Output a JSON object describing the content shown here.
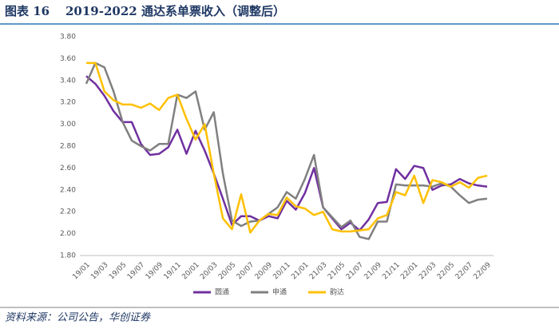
{
  "chart_data": {
    "type": "line",
    "label": "图表 16",
    "title": "2019-2022 通达系单票收入（调整后）",
    "source": "资料来源：公司公告，华创证券",
    "categories": [
      "19/01",
      null,
      "19/03",
      null,
      "19/05",
      null,
      "19/07",
      null,
      "19/09",
      null,
      "19/11",
      null,
      "20/01",
      null,
      "20/03",
      null,
      "20/05",
      null,
      "20/07",
      null,
      "20/09",
      null,
      "20/11",
      null,
      "21/01",
      null,
      "21/03",
      null,
      "21/05",
      null,
      "21/07",
      null,
      "21/09",
      null,
      "21/11",
      null,
      "22/01",
      null,
      "22/03",
      null,
      "22/05",
      null,
      "22/07",
      null,
      "22/09"
    ],
    "series": [
      {
        "name": "圆通",
        "color": "#7030a0",
        "values": [
          3.44,
          3.37,
          3.26,
          3.12,
          3.02,
          3.02,
          2.82,
          2.72,
          2.73,
          2.79,
          2.95,
          2.73,
          2.94,
          2.76,
          2.55,
          2.32,
          2.08,
          2.16,
          2.16,
          2.12,
          2.16,
          2.14,
          2.3,
          2.22,
          2.37,
          2.6,
          2.24,
          2.14,
          2.04,
          2.1,
          2.03,
          2.13,
          2.28,
          2.29,
          2.59,
          2.5,
          2.62,
          2.6,
          2.4,
          2.44,
          2.45,
          2.5,
          2.46,
          2.44,
          2.43
        ]
      },
      {
        "name": "申通",
        "color": "#808080",
        "values": [
          3.37,
          3.56,
          3.52,
          3.3,
          3.02,
          2.85,
          2.8,
          2.76,
          2.82,
          2.82,
          3.27,
          3.24,
          3.3,
          2.95,
          3.11,
          2.55,
          2.12,
          2.07,
          2.11,
          2.12,
          2.18,
          2.24,
          2.38,
          2.32,
          2.5,
          2.72,
          2.24,
          2.15,
          2.06,
          2.12,
          1.97,
          1.95,
          2.11,
          2.11,
          2.45,
          2.44,
          2.44,
          2.44,
          2.43,
          2.46,
          2.43,
          2.35,
          2.28,
          2.31,
          2.32
        ]
      },
      {
        "name": "韵达",
        "color": "#ffc000",
        "values": [
          3.56,
          3.56,
          3.3,
          3.22,
          3.18,
          3.18,
          3.15,
          3.19,
          3.13,
          3.24,
          3.27,
          3.05,
          2.86,
          3.0,
          2.55,
          2.14,
          2.04,
          2.36,
          2.01,
          2.12,
          2.18,
          2.17,
          2.33,
          2.25,
          2.23,
          2.17,
          2.2,
          2.04,
          2.02,
          2.02,
          2.03,
          2.04,
          2.14,
          2.17,
          2.38,
          2.35,
          2.53,
          2.28,
          2.49,
          2.47,
          2.43,
          2.47,
          2.42,
          2.51,
          2.53
        ]
      }
    ],
    "ylim": [
      1.8,
      3.8
    ],
    "yticks": [
      {
        "value": 1.8,
        "label": "1.80"
      },
      {
        "value": 2.0,
        "label": "2.00"
      },
      {
        "value": 2.2,
        "label": "2.20"
      },
      {
        "value": 2.4,
        "label": "2.40"
      },
      {
        "value": 2.6,
        "label": "2.60"
      },
      {
        "value": 2.8,
        "label": "2.80"
      },
      {
        "value": 3.0,
        "label": "3.00"
      },
      {
        "value": 3.2,
        "label": "3.20"
      },
      {
        "value": 3.4,
        "label": "3.40"
      },
      {
        "value": 3.6,
        "label": "3.60"
      },
      {
        "value": 3.8,
        "label": "3.80"
      }
    ],
    "grid": false,
    "legend": "bottom"
  }
}
